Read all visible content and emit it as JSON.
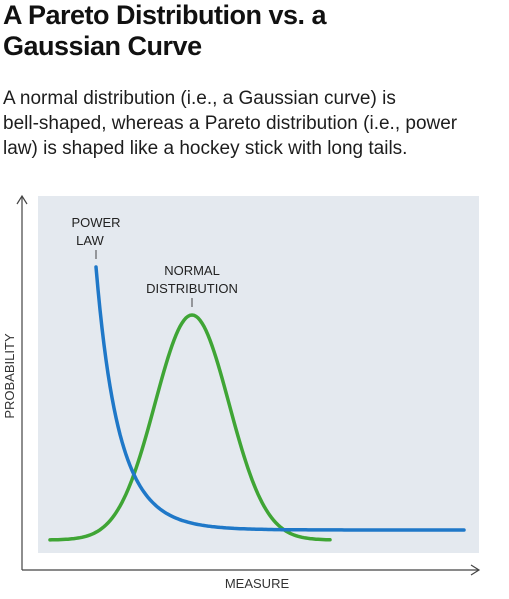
{
  "header": {
    "title_line1": "A Pareto Distribution vs. a",
    "title_line2": "Gaussian Curve",
    "subtitle_line1": "A normal distribution (i.e., a Gaussian curve) is",
    "subtitle_line2": "bell-shaped, whereas a Pareto distribution (i.e., power",
    "subtitle_line3": "law) is shaped like a hockey stick with long tails."
  },
  "diagram": {
    "x_axis_label": "MEASURE",
    "y_axis_label": "PROBABILITY",
    "power_law_label_line1": "POWER",
    "power_law_label_line2": "LAW",
    "normal_label_line1": "NORMAL",
    "normal_label_line2": "DISTRIBUTION",
    "colors": {
      "plot_background": "#e4e9ef",
      "power_law": "#1f78c8",
      "normal": "#3fa535",
      "axis": "#444444"
    }
  }
}
